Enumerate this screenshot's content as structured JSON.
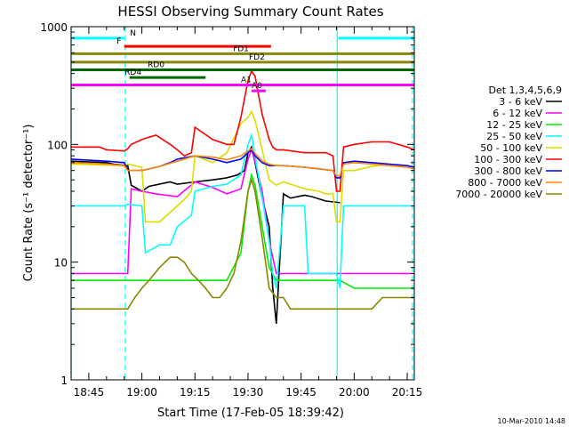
{
  "chart_data": {
    "type": "line",
    "title": "HESSI Observing Summary Count Rates",
    "xlabel": "Start Time (17-Feb-05 18:39:42)",
    "ylabel": "Count Rate (s⁻¹ detector⁻¹)",
    "yscale": "log",
    "ylim": [
      1,
      1000
    ],
    "xlim_minutes_after_18_40": [
      0,
      97
    ],
    "x_ticks": [
      "18:45",
      "19:00",
      "19:15",
      "19:30",
      "19:45",
      "20:00",
      "20:15"
    ],
    "x_tick_minutes": [
      5,
      20,
      35,
      50,
      65,
      80,
      95
    ],
    "y_ticks": [
      "1",
      "10",
      "100",
      "1000"
    ],
    "y_tick_values": [
      1,
      10,
      100,
      1000
    ],
    "legend_title": "Det 1,3,4,5,6,9",
    "legend_position": "right",
    "timestamp": "10-Mar-2010 14:48",
    "series": [
      {
        "name": "3 - 6 keV",
        "color": "#000000",
        "x": [
          0,
          10,
          12,
          16,
          17,
          20,
          22,
          28,
          30,
          35,
          40,
          44,
          47,
          49,
          50,
          51,
          52,
          54,
          56,
          57,
          58,
          60,
          62,
          66,
          68,
          72,
          76
        ],
        "y": [
          72,
          70,
          68,
          66,
          45,
          40,
          44,
          48,
          46,
          48,
          50,
          52,
          55,
          60,
          85,
          95,
          70,
          35,
          20,
          6,
          3,
          38,
          35,
          37,
          36,
          33,
          32
        ]
      },
      {
        "name": "6 - 12 keV",
        "color": "#ff00ff",
        "x": [
          0,
          16,
          17,
          20,
          24,
          30,
          35,
          40,
          44,
          48,
          50,
          51,
          52,
          54,
          56,
          58,
          60,
          66,
          70,
          75,
          76,
          80,
          85,
          90,
          95,
          97
        ],
        "y": [
          8,
          8,
          42,
          40,
          38,
          36,
          48,
          43,
          38,
          42,
          75,
          90,
          72,
          40,
          15,
          8,
          8,
          8,
          8,
          8,
          8,
          8,
          8,
          8,
          8,
          8
        ]
      },
      {
        "name": "12 - 25 keV",
        "color": "#00ee00",
        "x": [
          0,
          10,
          16,
          20,
          25,
          30,
          35,
          40,
          44,
          48,
          50,
          51,
          52,
          54,
          56,
          58,
          60,
          66,
          72,
          76,
          80,
          85,
          90,
          95,
          97
        ],
        "y": [
          7,
          7,
          7,
          7,
          7,
          7,
          7,
          7,
          7,
          12,
          40,
          55,
          45,
          20,
          9,
          7,
          7,
          7,
          7,
          7,
          6,
          6,
          6,
          6,
          6
        ]
      },
      {
        "name": "25 - 50 keV",
        "color": "#00ffff",
        "x": [
          0,
          10,
          15,
          16,
          20,
          21,
          25,
          28,
          30,
          34,
          35,
          40,
          44,
          48,
          50,
          51,
          52,
          54,
          56,
          57,
          58,
          60,
          62,
          66,
          67,
          70,
          74,
          75,
          76,
          77,
          80,
          85,
          90,
          95,
          97
        ],
        "y": [
          30,
          30,
          30,
          31,
          30,
          12,
          14,
          14,
          20,
          25,
          40,
          44,
          46,
          55,
          100,
          120,
          80,
          35,
          15,
          8,
          6,
          30,
          30,
          30,
          8,
          8,
          8,
          8,
          6,
          30,
          30,
          30,
          30,
          30,
          30
        ]
      },
      {
        "name": "50 - 100 keV",
        "color": "#dddd00",
        "x": [
          0,
          15,
          16,
          18,
          20,
          21,
          25,
          30,
          32,
          34,
          35,
          40,
          44,
          48,
          50,
          51,
          52,
          54,
          56,
          58,
          60,
          66,
          70,
          72,
          74,
          75,
          76,
          77,
          80,
          85,
          90,
          95,
          97
        ],
        "y": [
          68,
          66,
          68,
          66,
          64,
          22,
          22,
          30,
          34,
          40,
          80,
          70,
          85,
          150,
          170,
          190,
          160,
          90,
          50,
          45,
          48,
          42,
          40,
          38,
          38,
          22,
          22,
          60,
          60,
          65,
          68,
          66,
          64
        ]
      },
      {
        "name": "100 - 300 keV",
        "color": "#ff0000",
        "x": [
          0,
          8,
          10,
          15,
          16,
          17,
          20,
          22,
          24,
          28,
          30,
          32,
          34,
          35,
          40,
          44,
          46,
          48,
          50,
          51,
          52,
          54,
          56,
          57,
          58,
          60,
          66,
          72,
          74,
          75,
          76,
          77,
          80,
          85,
          90,
          95,
          97
        ],
        "y": [
          95,
          95,
          90,
          88,
          92,
          100,
          110,
          115,
          120,
          100,
          90,
          80,
          85,
          140,
          110,
          100,
          100,
          170,
          350,
          420,
          380,
          180,
          110,
          95,
          90,
          90,
          85,
          85,
          80,
          40,
          40,
          95,
          100,
          105,
          105,
          95,
          90
        ]
      },
      {
        "name": "300 - 800 keV",
        "color": "#0000ff",
        "x": [
          0,
          10,
          15,
          16,
          20,
          25,
          28,
          30,
          35,
          40,
          44,
          48,
          50,
          51,
          52,
          54,
          56,
          58,
          60,
          66,
          70,
          74,
          75,
          76,
          77,
          80,
          85,
          90,
          95,
          97
        ],
        "y": [
          75,
          72,
          70,
          60,
          60,
          65,
          70,
          75,
          80,
          75,
          70,
          75,
          85,
          90,
          80,
          70,
          66,
          66,
          66,
          64,
          62,
          60,
          52,
          52,
          70,
          72,
          70,
          68,
          66,
          64
        ]
      },
      {
        "name": "800 - 7000 keV",
        "color": "#ff8800",
        "x": [
          0,
          10,
          15,
          16,
          20,
          25,
          30,
          35,
          40,
          44,
          48,
          50,
          51,
          52,
          54,
          56,
          58,
          60,
          66,
          70,
          74,
          75,
          76,
          77,
          80,
          85,
          90,
          95,
          97
        ],
        "y": [
          70,
          68,
          66,
          60,
          60,
          65,
          72,
          80,
          78,
          74,
          80,
          88,
          92,
          84,
          72,
          68,
          66,
          66,
          64,
          62,
          60,
          54,
          54,
          68,
          70,
          68,
          66,
          64,
          62
        ]
      },
      {
        "name": "7000 - 20000 keV",
        "color": "#888800",
        "x": [
          0,
          5,
          10,
          12,
          15,
          16,
          18,
          20,
          22,
          25,
          28,
          30,
          32,
          34,
          36,
          38,
          40,
          42,
          44,
          46,
          48,
          50,
          51,
          52,
          54,
          56,
          58,
          60,
          62,
          64,
          66,
          68,
          70,
          72,
          74,
          76,
          78,
          80,
          82,
          85,
          88,
          90,
          92,
          95,
          97
        ],
        "y": [
          4,
          4,
          4,
          4,
          4,
          4,
          5,
          6,
          7,
          9,
          11,
          11,
          10,
          8,
          7,
          6,
          5,
          5,
          6,
          8,
          15,
          40,
          50,
          40,
          16,
          6,
          5,
          5,
          4,
          4,
          4,
          4,
          4,
          4,
          4,
          4,
          4,
          4,
          4,
          4,
          5,
          5,
          5,
          5,
          5
        ]
      }
    ],
    "annotations": {
      "top_bars": [
        {
          "label": "N",
          "color": "#00ffff",
          "start": 0,
          "end": 15,
          "value": 800,
          "label_at": 17.5
        },
        {
          "label": "",
          "color": "#00ffff",
          "start": 75.5,
          "end": 97,
          "value": 800
        },
        {
          "label": "F",
          "color": "#ff0000",
          "start": 15,
          "end": 56.5,
          "value": 680,
          "label_at": 13.5
        },
        {
          "label": "FD1",
          "color": "#888800",
          "start": 0,
          "end": 97,
          "value": 590,
          "label_at": 48
        },
        {
          "label": "FD2",
          "color": "#888800",
          "start": 0,
          "end": 97,
          "value": 500,
          "label_at": 52.5
        },
        {
          "label": "RD0",
          "color": "#006600",
          "start": 0,
          "end": 97,
          "value": 430,
          "label_at": 24
        },
        {
          "label": "RD4",
          "color": "#006600",
          "start": 16.5,
          "end": 38,
          "value": 370,
          "label_at": 17.5
        },
        {
          "label": "A1",
          "color": "#ff00ff",
          "start": 0,
          "end": 97,
          "value": 320,
          "label_at": 49.5
        },
        {
          "label": "A0",
          "color": "#ff00ff",
          "start": 51,
          "end": 55,
          "value": 285,
          "label_at": 52.5
        }
      ],
      "vertical_lines": [
        {
          "x": 0,
          "style": "solid",
          "color": "#00ffff"
        },
        {
          "x": 15.3,
          "style": "dashed",
          "color": "#00ffff"
        },
        {
          "x": 75.2,
          "style": "solid",
          "color": "#00ffff"
        },
        {
          "x": 96.5,
          "style": "dashed",
          "color": "#00ffff"
        }
      ]
    }
  }
}
